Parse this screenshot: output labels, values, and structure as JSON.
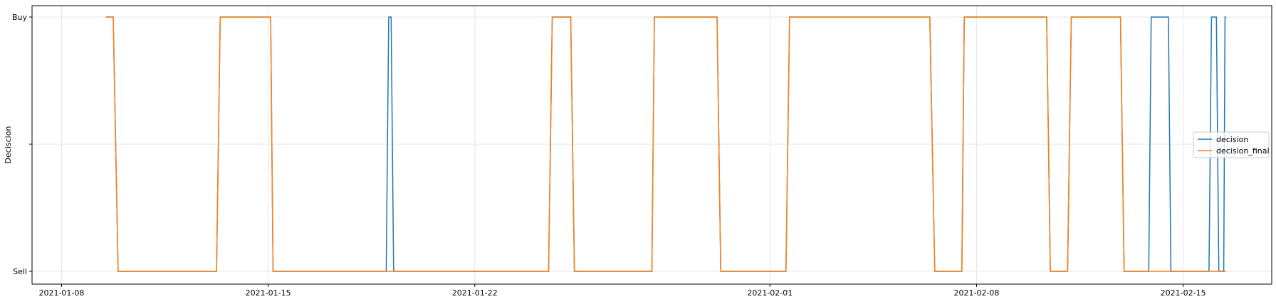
{
  "chart_data": {
    "type": "line",
    "ylabel": "Deciscion",
    "xlabel": "",
    "title": "",
    "y_categories": [
      "Sell",
      "",
      "Buy"
    ],
    "x_ticks": [
      "2021-01-08",
      "2021-01-15",
      "2021-01-22",
      "2021-02-01",
      "2021-02-08",
      "2021-02-15"
    ],
    "xlim": [
      "2021-01-07",
      "2021-02-18"
    ],
    "grid": true,
    "legend_position": "center-right",
    "series": [
      {
        "name": "decision",
        "color": "#1f77b4",
        "points": [
          [
            "2021-01-09T12:00",
            "Buy"
          ],
          [
            "2021-01-09T18:00",
            "Buy"
          ],
          [
            "2021-01-09T22:00",
            "Sell"
          ],
          [
            "2021-01-13T06:00",
            "Sell"
          ],
          [
            "2021-01-13T09:00",
            "Buy"
          ],
          [
            "2021-01-15T02:00",
            "Buy"
          ],
          [
            "2021-01-15T04:00",
            "Sell"
          ],
          [
            "2021-01-19T00:00",
            "Sell"
          ],
          [
            "2021-01-19T02:00",
            "Buy"
          ],
          [
            "2021-01-19T04:00",
            "Buy"
          ],
          [
            "2021-01-19T06:00",
            "Sell"
          ],
          [
            "2021-01-24T12:00",
            "Sell"
          ],
          [
            "2021-01-24T15:00",
            "Buy"
          ],
          [
            "2021-01-25T06:00",
            "Buy"
          ],
          [
            "2021-01-25T09:00",
            "Sell"
          ],
          [
            "2021-01-28T00:00",
            "Sell"
          ],
          [
            "2021-01-28T02:00",
            "Buy"
          ],
          [
            "2021-01-30T05:00",
            "Buy"
          ],
          [
            "2021-01-30T08:00",
            "Sell"
          ],
          [
            "2021-02-01T13:00",
            "Sell"
          ],
          [
            "2021-02-01T16:00",
            "Buy"
          ],
          [
            "2021-02-06T10:00",
            "Buy"
          ],
          [
            "2021-02-06T14:00",
            "Sell"
          ],
          [
            "2021-02-07T12:00",
            "Sell"
          ],
          [
            "2021-02-07T14:00",
            "Buy"
          ],
          [
            "2021-02-10T09:00",
            "Buy"
          ],
          [
            "2021-02-10T12:00",
            "Sell"
          ],
          [
            "2021-02-11T02:00",
            "Sell"
          ],
          [
            "2021-02-11T05:00",
            "Buy"
          ],
          [
            "2021-02-12T21:00",
            "Buy"
          ],
          [
            "2021-02-13T00:00",
            "Sell"
          ],
          [
            "2021-02-13T20:00",
            "Sell"
          ],
          [
            "2021-02-13T22:00",
            "Buy"
          ],
          [
            "2021-02-14T12:00",
            "Buy"
          ],
          [
            "2021-02-14T14:00",
            "Sell"
          ],
          [
            "2021-02-15T21:00",
            "Sell"
          ],
          [
            "2021-02-15T23:00",
            "Buy"
          ],
          [
            "2021-02-16T03:00",
            "Buy"
          ],
          [
            "2021-02-16T05:00",
            "Sell"
          ],
          [
            "2021-02-16T09:00",
            "Sell"
          ],
          [
            "2021-02-16T10:00",
            "Buy"
          ],
          [
            "2021-02-16T11:00",
            "Buy"
          ]
        ]
      },
      {
        "name": "decision_final",
        "color": "#ff7f0e",
        "points": [
          [
            "2021-01-09T12:00",
            "Buy"
          ],
          [
            "2021-01-09T18:00",
            "Buy"
          ],
          [
            "2021-01-09T22:00",
            "Sell"
          ],
          [
            "2021-01-13T06:00",
            "Sell"
          ],
          [
            "2021-01-13T09:00",
            "Buy"
          ],
          [
            "2021-01-15T02:00",
            "Buy"
          ],
          [
            "2021-01-15T04:00",
            "Sell"
          ],
          [
            "2021-01-24T12:00",
            "Sell"
          ],
          [
            "2021-01-24T15:00",
            "Buy"
          ],
          [
            "2021-01-25T06:00",
            "Buy"
          ],
          [
            "2021-01-25T09:00",
            "Sell"
          ],
          [
            "2021-01-28T00:00",
            "Sell"
          ],
          [
            "2021-01-28T02:00",
            "Buy"
          ],
          [
            "2021-01-30T05:00",
            "Buy"
          ],
          [
            "2021-01-30T08:00",
            "Sell"
          ],
          [
            "2021-02-01T13:00",
            "Sell"
          ],
          [
            "2021-02-01T16:00",
            "Buy"
          ],
          [
            "2021-02-06T10:00",
            "Buy"
          ],
          [
            "2021-02-06T14:00",
            "Sell"
          ],
          [
            "2021-02-07T12:00",
            "Sell"
          ],
          [
            "2021-02-07T14:00",
            "Buy"
          ],
          [
            "2021-02-10T09:00",
            "Buy"
          ],
          [
            "2021-02-10T12:00",
            "Sell"
          ],
          [
            "2021-02-11T02:00",
            "Sell"
          ],
          [
            "2021-02-11T05:00",
            "Buy"
          ],
          [
            "2021-02-12T21:00",
            "Buy"
          ],
          [
            "2021-02-13T00:00",
            "Sell"
          ],
          [
            "2021-02-16T11:00",
            "Sell"
          ]
        ]
      }
    ]
  }
}
